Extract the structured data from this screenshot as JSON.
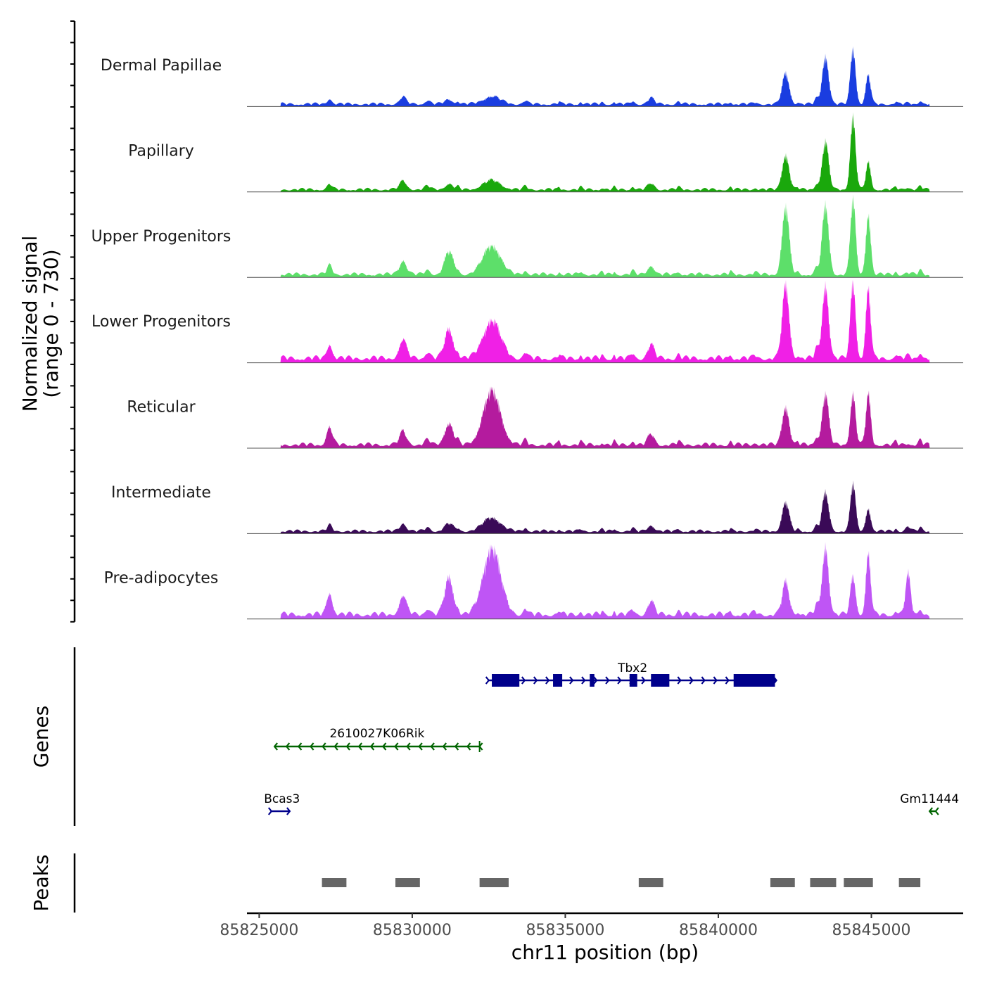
{
  "chart_data": {
    "type": "area",
    "title": "",
    "chromosome": "chr11",
    "xlabel": "chr11 position (bp)",
    "xlim": [
      85824600,
      85848000
    ],
    "xticks": [
      85825000,
      85830000,
      85835000,
      85840000,
      85845000
    ],
    "xtick_labels": [
      "85825000",
      "85830000",
      "85835000",
      "85840000",
      "85845000"
    ],
    "ylabel_line1": "Normalized signal",
    "ylabel_line2": "(range 0 - 730)",
    "ylim": [
      0,
      730
    ],
    "signal_start": 85825700,
    "signal_end": 85846900,
    "background_bumps": [
      [
        85827300,
        70,
        90
      ],
      [
        85829700,
        80,
        100
      ],
      [
        85830500,
        60,
        130
      ],
      [
        85831500,
        40,
        60
      ],
      [
        85833700,
        60,
        90
      ],
      [
        85834800,
        40,
        50
      ],
      [
        85835500,
        40,
        60
      ],
      [
        85836200,
        30,
        60
      ],
      [
        85836600,
        40,
        50
      ],
      [
        85837200,
        50,
        80
      ],
      [
        85838700,
        40,
        80
      ],
      [
        85840400,
        40,
        60
      ],
      [
        85841200,
        30,
        80
      ],
      [
        85842600,
        30,
        60
      ],
      [
        85843200,
        90,
        80
      ],
      [
        85845800,
        40,
        60
      ],
      [
        85846600,
        60,
        80
      ]
    ],
    "series": [
      {
        "name": "Dermal Papillae",
        "color": "#1a3de0",
        "bg_level": 0.05,
        "peaks": [
          [
            85827300,
            0.02,
            150
          ],
          [
            85829700,
            0.04,
            200
          ],
          [
            85831200,
            0.06,
            200
          ],
          [
            85832600,
            0.1,
            400
          ],
          [
            85837800,
            0.08,
            150
          ],
          [
            85842200,
            0.4,
            160
          ],
          [
            85843500,
            0.62,
            150
          ],
          [
            85844400,
            0.72,
            120
          ],
          [
            85844900,
            0.38,
            110
          ],
          [
            85846200,
            0.01,
            120
          ]
        ]
      },
      {
        "name": "Papillary",
        "color": "#1aa80c",
        "bg_level": 0.05,
        "peaks": [
          [
            85827300,
            0.02,
            150
          ],
          [
            85829700,
            0.06,
            200
          ],
          [
            85831200,
            0.07,
            200
          ],
          [
            85832600,
            0.12,
            400
          ],
          [
            85837800,
            0.08,
            150
          ],
          [
            85842200,
            0.45,
            160
          ],
          [
            85843500,
            0.62,
            150
          ],
          [
            85844400,
            0.94,
            120
          ],
          [
            85844900,
            0.35,
            110
          ],
          [
            85846200,
            0.03,
            120
          ]
        ]
      },
      {
        "name": "Upper Progenitors",
        "color": "#5ddf6a",
        "bg_level": 0.06,
        "peaks": [
          [
            85827300,
            0.06,
            150
          ],
          [
            85829700,
            0.12,
            200
          ],
          [
            85831200,
            0.3,
            200
          ],
          [
            85832600,
            0.38,
            400
          ],
          [
            85837800,
            0.12,
            150
          ],
          [
            85842200,
            0.88,
            160
          ],
          [
            85843500,
            0.9,
            150
          ],
          [
            85844400,
            0.98,
            120
          ],
          [
            85844900,
            0.78,
            110
          ],
          [
            85846200,
            0.02,
            120
          ]
        ]
      },
      {
        "name": "Lower Progenitors",
        "color": "#f020e6",
        "bg_level": 0.09,
        "peaks": [
          [
            85827300,
            0.1,
            150
          ],
          [
            85829700,
            0.15,
            200
          ],
          [
            85831200,
            0.38,
            200
          ],
          [
            85832600,
            0.5,
            400
          ],
          [
            85837800,
            0.18,
            150
          ],
          [
            85842200,
            0.95,
            160
          ],
          [
            85843500,
            0.95,
            150
          ],
          [
            85844400,
            1.0,
            120
          ],
          [
            85844900,
            0.9,
            110
          ],
          [
            85846200,
            0.03,
            120
          ]
        ]
      },
      {
        "name": "Reticular",
        "color": "#b41b9e",
        "bg_level": 0.07,
        "peaks": [
          [
            85827300,
            0.16,
            150
          ],
          [
            85829700,
            0.1,
            200
          ],
          [
            85831200,
            0.28,
            200
          ],
          [
            85832600,
            0.7,
            400
          ],
          [
            85837800,
            0.14,
            150
          ],
          [
            85842200,
            0.5,
            160
          ],
          [
            85843500,
            0.66,
            150
          ],
          [
            85844400,
            0.66,
            120
          ],
          [
            85844900,
            0.66,
            110
          ],
          [
            85846200,
            0.02,
            120
          ]
        ]
      },
      {
        "name": "Intermediate",
        "color": "#3a0a57",
        "bg_level": 0.05,
        "peaks": [
          [
            85827300,
            0.03,
            150
          ],
          [
            85829700,
            0.05,
            200
          ],
          [
            85831200,
            0.1,
            200
          ],
          [
            85832600,
            0.18,
            400
          ],
          [
            85837800,
            0.08,
            150
          ],
          [
            85842200,
            0.38,
            160
          ],
          [
            85843500,
            0.5,
            150
          ],
          [
            85844400,
            0.62,
            120
          ],
          [
            85844900,
            0.3,
            110
          ],
          [
            85846200,
            0.06,
            120
          ]
        ]
      },
      {
        "name": "Pre-adipocytes",
        "color": "#bf55f5",
        "bg_level": 0.09,
        "peaks": [
          [
            85827300,
            0.2,
            150
          ],
          [
            85829700,
            0.15,
            200
          ],
          [
            85831200,
            0.48,
            200
          ],
          [
            85832600,
            0.88,
            400
          ],
          [
            85837800,
            0.18,
            150
          ],
          [
            85842200,
            0.42,
            160
          ],
          [
            85843500,
            0.88,
            150
          ],
          [
            85844400,
            0.5,
            120
          ],
          [
            85844900,
            0.78,
            110
          ],
          [
            85846200,
            0.52,
            120
          ]
        ]
      }
    ],
    "genes": [
      {
        "name": "Tbx2",
        "strand": "+",
        "color": "#00008b",
        "row": 0,
        "start": 85832500,
        "end": 85841900,
        "exons": [
          [
            85832600,
            85833500
          ],
          [
            85834600,
            85834900
          ],
          [
            85835800,
            85835950
          ],
          [
            85837100,
            85837350
          ],
          [
            85837800,
            85838400
          ],
          [
            85840500,
            85841850
          ]
        ]
      },
      {
        "name": "2610027K06Rik",
        "strand": "-",
        "color": "#006400",
        "row": 1,
        "start": 85825500,
        "end": 85832200,
        "exons": []
      },
      {
        "name": "Bcas3",
        "strand": "+",
        "color": "#00008b",
        "row": 2,
        "start": 85825400,
        "end": 85826000,
        "exons": []
      },
      {
        "name": "Gm11444",
        "strand": "-",
        "color": "#006400",
        "row": 2,
        "start": 85846900,
        "end": 85847100,
        "exons": []
      }
    ],
    "genes_label": "Genes",
    "peaks_label": "Peaks",
    "peak_color": "#666666",
    "peaks": [
      [
        85827050,
        85827850
      ],
      [
        85829450,
        85830250
      ],
      [
        85832200,
        85833150
      ],
      [
        85837400,
        85838200
      ],
      [
        85841700,
        85842500
      ],
      [
        85843000,
        85843850
      ],
      [
        85844100,
        85845050
      ],
      [
        85845900,
        85846600
      ]
    ]
  }
}
